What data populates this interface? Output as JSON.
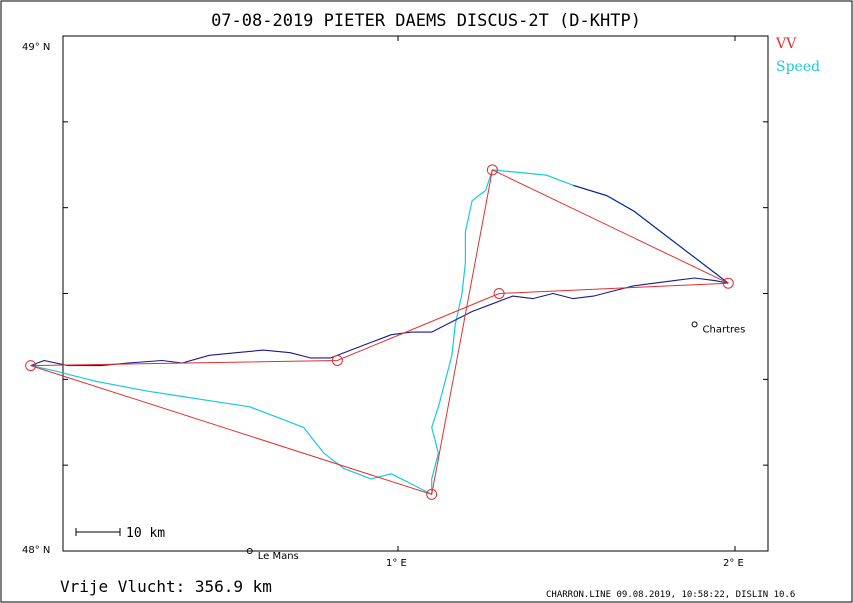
{
  "title": "07-08-2019    PIETER DAEMS    DISCUS-2T (D-KHTP)",
  "legend": [
    {
      "label": "VV",
      "color": "#e03030"
    },
    {
      "label": "Speed",
      "color": "#19c9dc"
    }
  ],
  "axes": {
    "y_top_label": "49° N",
    "y_bottom_label": "48° N",
    "x_labels": [
      "1° E",
      "2° E"
    ]
  },
  "places": [
    {
      "name": "Chartres",
      "lon": 1.88,
      "lat": 48.44
    },
    {
      "name": "Le Mans",
      "lon": 0.56,
      "lat": 48.0
    }
  ],
  "scale_bar": {
    "label": "10 km"
  },
  "footer": {
    "distance": "Vrije Vlucht:  356.9 km",
    "credits": "CHARRON.LINE 09.08.2019, 10:58:22, DISLIN 10.6"
  },
  "colors": {
    "task_line": "#e03030",
    "track_dark": "#1a1a8c",
    "track_speed": "#19c9dc",
    "frame": "#000000"
  },
  "chart_data": {
    "type": "map",
    "xlim": [
      0.0,
      2.1
    ],
    "ylim": [
      48.0,
      49.0
    ],
    "turnpoints": [
      {
        "lon": -0.09,
        "lat": 48.36
      },
      {
        "lon": 0.82,
        "lat": 48.37
      },
      {
        "lon": 1.3,
        "lat": 48.5
      },
      {
        "lon": 1.98,
        "lat": 48.52
      },
      {
        "lon": 1.28,
        "lat": 48.74
      },
      {
        "lon": 1.1,
        "lat": 48.11
      },
      {
        "lon": -0.09,
        "lat": 48.36
      }
    ],
    "track_east": [
      [
        -0.09,
        48.36
      ],
      [
        -0.05,
        48.37
      ],
      [
        0.02,
        48.36
      ],
      [
        0.12,
        48.36
      ],
      [
        0.2,
        48.365
      ],
      [
        0.3,
        48.37
      ],
      [
        0.36,
        48.365
      ],
      [
        0.44,
        48.38
      ],
      [
        0.52,
        48.385
      ],
      [
        0.6,
        48.39
      ],
      [
        0.68,
        48.385
      ],
      [
        0.74,
        48.375
      ],
      [
        0.8,
        48.375
      ],
      [
        0.86,
        48.39
      ],
      [
        0.92,
        48.405
      ],
      [
        0.98,
        48.42
      ],
      [
        1.04,
        48.425
      ],
      [
        1.1,
        48.425
      ],
      [
        1.16,
        48.445
      ],
      [
        1.22,
        48.465
      ],
      [
        1.28,
        48.48
      ],
      [
        1.34,
        48.495
      ],
      [
        1.4,
        48.49
      ],
      [
        1.46,
        48.5
      ],
      [
        1.52,
        48.49
      ],
      [
        1.58,
        48.495
      ],
      [
        1.64,
        48.505
      ],
      [
        1.7,
        48.515
      ],
      [
        1.76,
        48.52
      ],
      [
        1.82,
        48.525
      ],
      [
        1.88,
        48.53
      ],
      [
        1.94,
        48.525
      ],
      [
        1.98,
        48.52
      ]
    ],
    "track_north": [
      [
        1.98,
        48.52
      ],
      [
        1.9,
        48.56
      ],
      [
        1.8,
        48.61
      ],
      [
        1.7,
        48.66
      ],
      [
        1.62,
        48.69
      ],
      [
        1.52,
        48.71
      ],
      [
        1.44,
        48.73
      ],
      [
        1.36,
        48.735
      ],
      [
        1.28,
        48.74
      ]
    ],
    "track_south": [
      [
        1.28,
        48.74
      ],
      [
        1.26,
        48.7
      ],
      [
        1.22,
        48.68
      ],
      [
        1.2,
        48.62
      ],
      [
        1.2,
        48.56
      ],
      [
        1.19,
        48.5
      ],
      [
        1.17,
        48.44
      ],
      [
        1.16,
        48.38
      ],
      [
        1.14,
        48.33
      ],
      [
        1.12,
        48.28
      ],
      [
        1.1,
        48.24
      ],
      [
        1.12,
        48.19
      ],
      [
        1.1,
        48.14
      ],
      [
        1.1,
        48.11
      ]
    ],
    "track_west": [
      [
        1.1,
        48.11
      ],
      [
        1.04,
        48.13
      ],
      [
        0.98,
        48.15
      ],
      [
        0.92,
        48.14
      ],
      [
        0.84,
        48.16
      ],
      [
        0.78,
        48.19
      ],
      [
        0.72,
        48.24
      ],
      [
        0.64,
        48.26
      ],
      [
        0.56,
        48.28
      ],
      [
        0.46,
        48.29
      ],
      [
        0.36,
        48.3
      ],
      [
        0.26,
        48.31
      ],
      [
        0.18,
        48.32
      ],
      [
        0.1,
        48.33
      ],
      [
        0.04,
        48.34
      ],
      [
        -0.02,
        48.35
      ],
      [
        -0.09,
        48.36
      ]
    ]
  }
}
